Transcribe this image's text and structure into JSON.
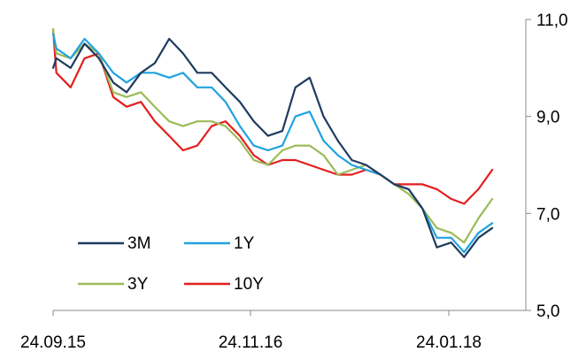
{
  "chart_data": {
    "type": "line",
    "title": "",
    "xlabel": "",
    "ylabel": "",
    "x_ticks": [
      "24.09.15",
      "24.11.16",
      "24.01.18"
    ],
    "y_ticks": [
      "5,0",
      "7,0",
      "9,0",
      "11,0"
    ],
    "ylim": [
      5.0,
      11.0
    ],
    "y_axis_side": "right",
    "grid": false,
    "legend_position": "bottom-left",
    "x_dates": [
      "2015-09-01",
      "2015-10-01",
      "2015-11-01",
      "2015-12-01",
      "2016-01-01",
      "2016-02-01",
      "2016-03-01",
      "2016-04-01",
      "2016-05-01",
      "2016-06-01",
      "2016-07-01",
      "2016-08-01",
      "2016-09-01",
      "2016-10-01",
      "2016-11-01",
      "2016-12-01",
      "2017-01-01",
      "2017-02-01",
      "2017-03-01",
      "2017-04-01",
      "2017-05-01",
      "2017-06-01",
      "2017-07-01",
      "2017-08-01",
      "2017-09-01",
      "2017-10-01",
      "2017-11-01",
      "2017-12-01",
      "2018-01-01",
      "2018-02-01",
      "2018-03-01",
      "2018-04-01",
      "2018-05-01"
    ],
    "series": [
      {
        "name": "3M",
        "color": "#1f3b5f",
        "values": [
          10.0,
          10.2,
          10.0,
          10.5,
          10.2,
          9.7,
          9.5,
          9.9,
          10.1,
          10.6,
          10.3,
          9.9,
          9.9,
          9.6,
          9.3,
          8.9,
          8.6,
          8.7,
          9.6,
          9.8,
          9.0,
          8.5,
          8.1,
          8.0,
          7.8,
          7.6,
          7.5,
          7.1,
          6.3,
          6.4,
          6.1,
          6.5,
          6.7
        ]
      },
      {
        "name": "1Y",
        "color": "#1fa3de",
        "values": [
          10.7,
          10.4,
          10.2,
          10.6,
          10.3,
          9.9,
          9.7,
          9.9,
          9.9,
          9.8,
          9.9,
          9.6,
          9.6,
          9.3,
          8.8,
          8.4,
          8.3,
          8.4,
          9.0,
          9.1,
          8.5,
          8.2,
          8.0,
          7.9,
          7.8,
          7.6,
          7.5,
          7.1,
          6.5,
          6.5,
          6.2,
          6.6,
          6.8
        ]
      },
      {
        "name": "3Y",
        "color": "#9bbb59",
        "values": [
          10.8,
          10.3,
          10.2,
          10.5,
          10.3,
          9.5,
          9.4,
          9.5,
          9.2,
          8.9,
          8.8,
          8.9,
          8.9,
          8.8,
          8.5,
          8.1,
          8.0,
          8.3,
          8.4,
          8.4,
          8.2,
          7.8,
          7.9,
          8.0,
          7.8,
          7.6,
          7.4,
          7.1,
          6.7,
          6.6,
          6.4,
          6.9,
          7.3
        ]
      },
      {
        "name": "10Y",
        "color": "#e31e1e",
        "values": [
          10.8,
          9.9,
          9.6,
          10.2,
          10.3,
          9.4,
          9.2,
          9.3,
          8.9,
          8.6,
          8.3,
          8.4,
          8.8,
          8.9,
          8.6,
          8.2,
          8.0,
          8.1,
          8.1,
          8.0,
          7.9,
          7.8,
          7.8,
          7.9,
          7.8,
          7.6,
          7.6,
          7.6,
          7.5,
          7.3,
          7.2,
          7.5,
          7.9
        ]
      }
    ]
  }
}
